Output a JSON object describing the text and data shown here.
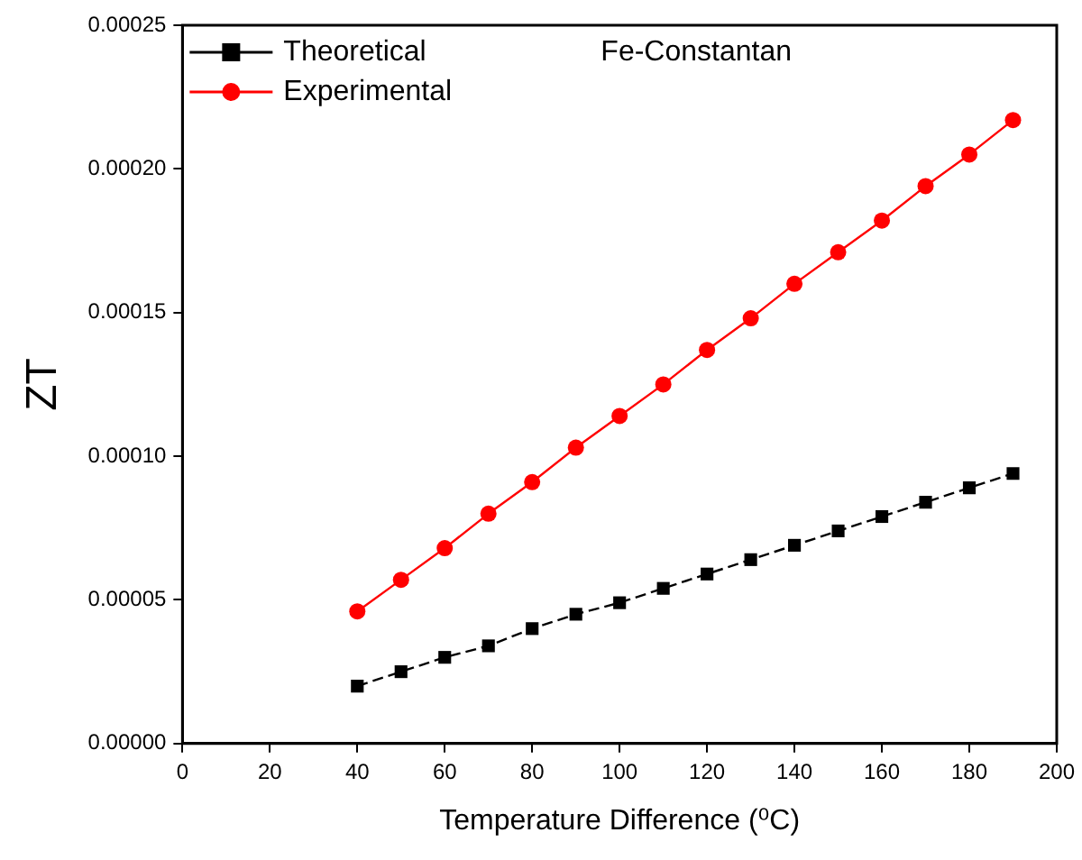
{
  "chart_data": {
    "type": "line",
    "xlabel": "Temperature Difference (⁰C)",
    "ylabel": "ZT",
    "annotations": [
      "Fe-Constantan"
    ],
    "x": [
      40,
      50,
      60,
      70,
      80,
      90,
      100,
      110,
      120,
      130,
      140,
      150,
      160,
      170,
      180,
      190
    ],
    "series": [
      {
        "name": "Theoretical",
        "color": "#000000",
        "marker": "square",
        "line_style": "dashed",
        "values": [
          2e-05,
          2.5e-05,
          3e-05,
          3.4e-05,
          4e-05,
          4.5e-05,
          4.9e-05,
          5.4e-05,
          5.9e-05,
          6.4e-05,
          6.9e-05,
          7.4e-05,
          7.9e-05,
          8.4e-05,
          8.9e-05,
          9.4e-05
        ]
      },
      {
        "name": "Experimental",
        "color": "#ff0000",
        "marker": "circle",
        "line_style": "solid",
        "values": [
          4.6e-05,
          5.7e-05,
          6.8e-05,
          8e-05,
          9.1e-05,
          0.000103,
          0.000114,
          0.000125,
          0.000137,
          0.000148,
          0.00016,
          0.000171,
          0.000182,
          0.000194,
          0.000205,
          0.000217
        ]
      }
    ],
    "xlim": [
      0,
      200
    ],
    "xticks": [
      0,
      20,
      40,
      60,
      80,
      100,
      120,
      140,
      160,
      180,
      200
    ],
    "ylim": [
      0,
      0.00025
    ],
    "yticks": [
      {
        "value": 0,
        "label": "0.00000"
      },
      {
        "value": 5e-05,
        "label": "0.00005"
      },
      {
        "value": 0.0001,
        "label": "0.00010"
      },
      {
        "value": 0.00015,
        "label": "0.00015"
      },
      {
        "value": 0.0002,
        "label": "0.00020"
      },
      {
        "value": 0.00025,
        "label": "0.00025"
      }
    ],
    "grid": false,
    "legend": "top left"
  }
}
